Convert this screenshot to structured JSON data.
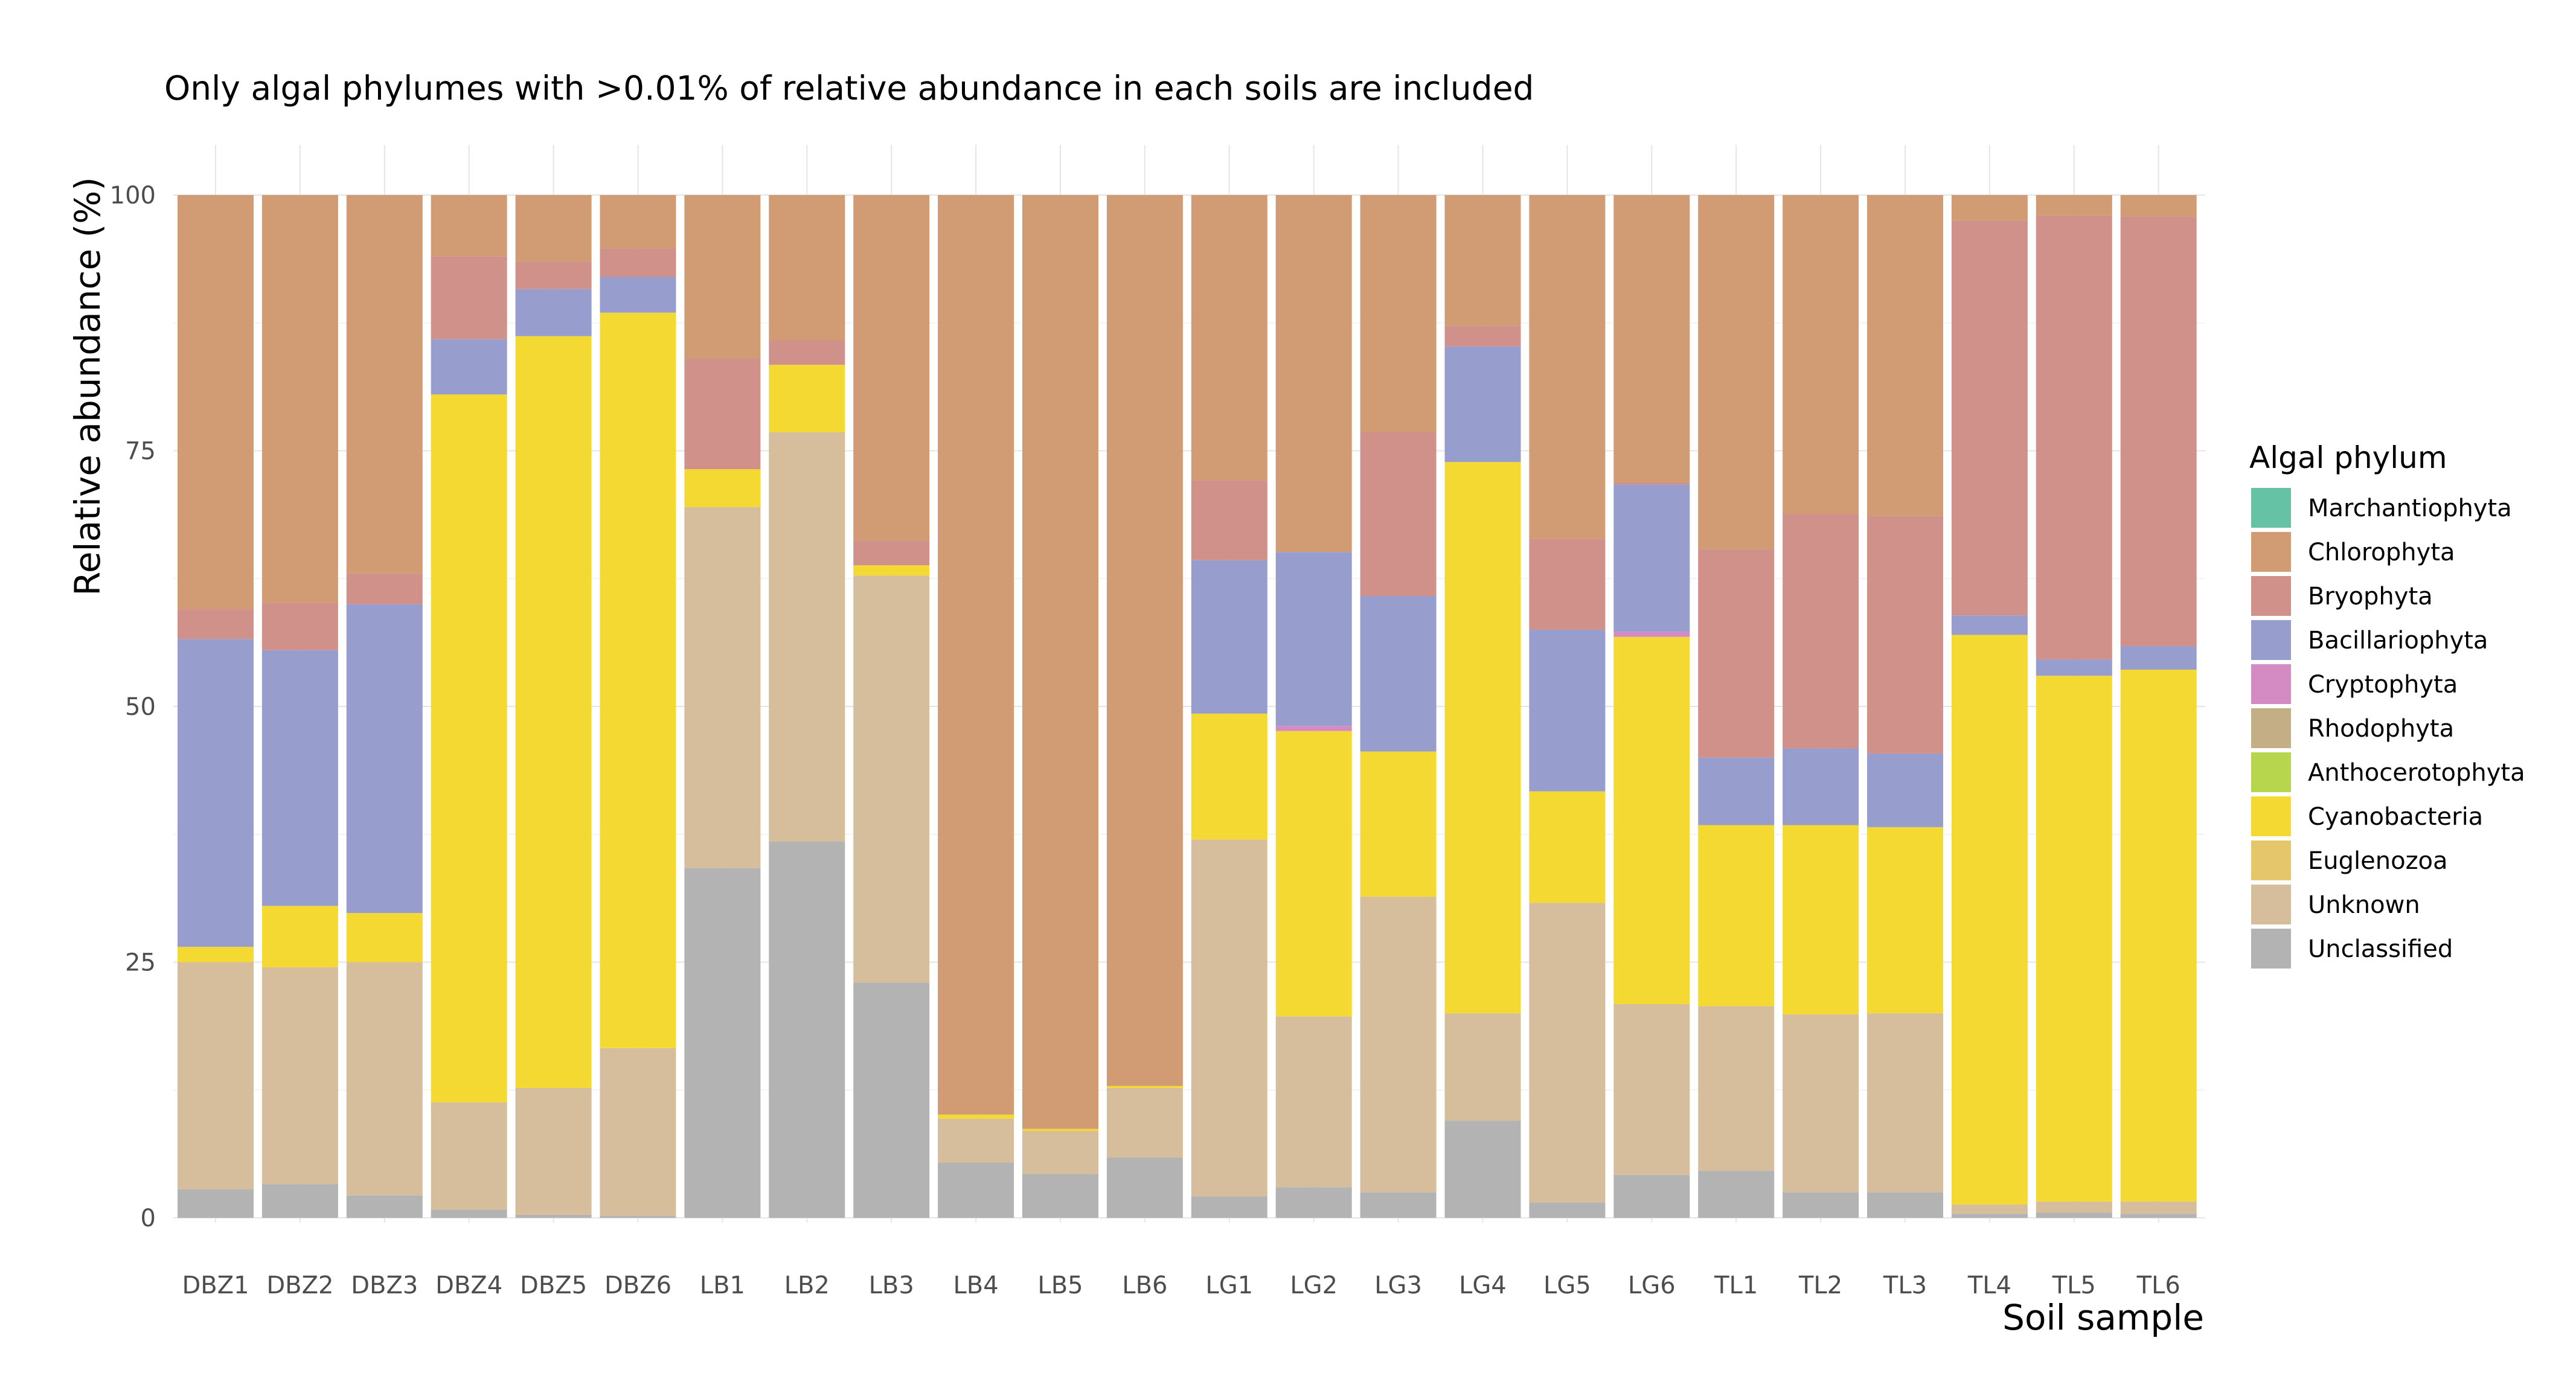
{
  "chart_data": {
    "type": "bar",
    "stacked": true,
    "title": "Only algal phylumes with >0.01% of relative abundance in each soils are included",
    "xlabel": "Soil sample",
    "ylabel": "Relative abundance (%)",
    "ylim": [
      0,
      100
    ],
    "yticks": [
      0,
      25,
      50,
      75,
      100
    ],
    "grid": true,
    "legend_position": "right",
    "legend_title": "Algal phylum",
    "categories": [
      "DBZ1",
      "DBZ2",
      "DBZ3",
      "DBZ4",
      "DBZ5",
      "DBZ6",
      "LB1",
      "LB2",
      "LB3",
      "LB4",
      "LB5",
      "LB6",
      "LG1",
      "LG2",
      "LG3",
      "LG4",
      "LG5",
      "LG6",
      "TL1",
      "TL2",
      "TL3",
      "TL4",
      "TL5",
      "TL6"
    ],
    "legend_order": [
      "Marchantiophyta",
      "Chlorophyta",
      "Bryophyta",
      "Bacillariophyta",
      "Cryptophyta",
      "Rhodophyta",
      "Anthocerotophyta",
      "Cyanobacteria",
      "Euglenozoa",
      "Unknown",
      "Unclassified"
    ],
    "series": [
      {
        "name": "Unclassified",
        "color": "#b3b3b3",
        "values": [
          2.8,
          3.3,
          2.2,
          0.8,
          0.3,
          0.2,
          34.2,
          36.8,
          23.0,
          5.4,
          4.3,
          5.9,
          2.1,
          3.0,
          2.5,
          9.5,
          1.5,
          4.2,
          4.6,
          2.5,
          2.5,
          0.4,
          0.5,
          0.4
        ]
      },
      {
        "name": "Unknown",
        "color": "#d6be9d",
        "values": [
          22.2,
          21.2,
          22.8,
          10.5,
          12.4,
          16.4,
          35.3,
          40.0,
          39.8,
          4.3,
          4.2,
          6.8,
          34.9,
          16.7,
          28.9,
          10.5,
          29.3,
          16.7,
          16.1,
          17.4,
          17.5,
          0.9,
          1.1,
          1.2
        ]
      },
      {
        "name": "Euglenozoa",
        "color": "#e5c66a",
        "values": [
          0,
          0,
          0,
          0,
          0,
          0,
          0,
          0,
          0,
          0,
          0,
          0,
          0,
          0,
          0,
          0,
          0,
          0,
          0,
          0,
          0,
          0,
          0,
          0
        ]
      },
      {
        "name": "Cyanobacteria",
        "color": "#f5d933",
        "values": [
          1.5,
          6.0,
          4.8,
          69.2,
          73.5,
          71.9,
          3.7,
          6.6,
          1.0,
          0.4,
          0.2,
          0.2,
          12.3,
          27.9,
          14.2,
          53.9,
          10.9,
          35.9,
          17.7,
          18.5,
          18.2,
          55.7,
          51.4,
          52.0
        ]
      },
      {
        "name": "Anthocerotophyta",
        "color": "#b7d64e",
        "values": [
          0,
          0,
          0,
          0,
          0,
          0,
          0,
          0,
          0,
          0,
          0,
          0,
          0,
          0,
          0,
          0,
          0,
          0,
          0,
          0,
          0,
          0,
          0,
          0
        ]
      },
      {
        "name": "Rhodophyta",
        "color": "#c4ae86",
        "values": [
          0,
          0,
          0,
          0,
          0,
          0,
          0,
          0,
          0,
          0,
          0,
          0,
          0,
          0,
          0,
          0,
          0,
          0,
          0,
          0,
          0,
          0,
          0,
          0
        ]
      },
      {
        "name": "Cryptophyta",
        "color": "#d48ac3",
        "values": [
          0,
          0,
          0,
          0,
          0,
          0,
          0,
          0,
          0,
          0,
          0,
          0,
          0,
          0.5,
          0,
          0,
          0,
          0.5,
          0,
          0,
          0,
          0,
          0,
          0
        ]
      },
      {
        "name": "Bacillariophyta",
        "color": "#979dcc",
        "values": [
          30.1,
          25.0,
          30.2,
          5.4,
          4.6,
          3.5,
          0,
          0,
          0,
          0,
          0,
          0,
          15.0,
          17.0,
          15.2,
          11.3,
          15.8,
          14.4,
          6.6,
          7.5,
          7.2,
          1.9,
          1.6,
          2.3
        ]
      },
      {
        "name": "Bryophyta",
        "color": "#d1918b",
        "values": [
          2.9,
          4.6,
          3.0,
          8.1,
          2.7,
          2.8,
          10.8,
          2.4,
          2.4,
          0,
          0,
          0,
          7.8,
          0,
          16.0,
          2.0,
          8.9,
          0.2,
          20.4,
          22.9,
          23.2,
          38.6,
          43.4,
          42.0
        ]
      },
      {
        "name": "Chlorophyta",
        "color": "#d19b74",
        "values": [
          40.5,
          39.9,
          37.0,
          6.0,
          6.5,
          5.2,
          16.0,
          14.2,
          33.8,
          89.9,
          91.3,
          87.1,
          27.9,
          34.9,
          23.2,
          12.8,
          33.6,
          28.1,
          34.6,
          31.2,
          31.4,
          2.5,
          2.0,
          2.1
        ]
      },
      {
        "name": "Marchantiophyta",
        "color": "#66c2a5",
        "values": [
          0,
          0,
          0,
          0,
          0,
          0,
          0,
          0,
          0,
          0,
          0,
          0,
          0,
          0,
          0,
          0,
          0,
          0,
          0,
          0,
          0,
          0,
          0,
          0
        ]
      }
    ]
  }
}
